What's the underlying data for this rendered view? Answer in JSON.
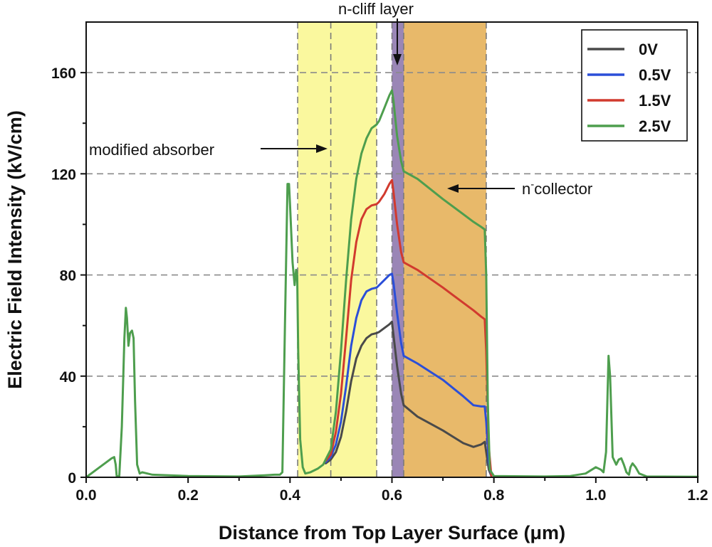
{
  "chart_data": {
    "type": "line",
    "xlabel": "Distance from Top Layer Surface (μm)",
    "ylabel": "Electric Field Intensity (kV/cm)",
    "xlim": [
      0,
      1.2
    ],
    "ylim": [
      0,
      180
    ],
    "xticks": [
      0.0,
      0.2,
      0.4,
      0.6,
      0.8,
      1.0,
      1.2
    ],
    "xtick_labels": [
      "0.0",
      "0.2",
      "0.4",
      "0.6",
      "0.8",
      "1.0",
      "1.2"
    ],
    "yticks": [
      0,
      40,
      80,
      120,
      160
    ],
    "ytick_labels": [
      "0",
      "40",
      "80",
      "120",
      "160"
    ],
    "grid": "horizontal dashed at 40, 80, 120, 160",
    "legend_position": "top-right",
    "regions": [
      {
        "name": "modified absorber",
        "x0": 0.415,
        "x1": 0.57,
        "color": "#faf89e"
      },
      {
        "name": "n-cliff layer",
        "x0": 0.6,
        "x1": 0.623,
        "color": "#9a86b6"
      },
      {
        "name": "n-collector",
        "x0": 0.623,
        "x1": 0.785,
        "color": "#e8b96a"
      }
    ],
    "vlines": [
      0.415,
      0.48,
      0.57,
      0.6,
      0.623,
      0.785
    ],
    "annotations": {
      "modified_absorber": "modified absorber",
      "n_cliff": "n-cliff layer",
      "collector_main": "n",
      "collector_sup": "-",
      "collector_tail": "collector"
    },
    "series": [
      {
        "name": "0V",
        "color": "#4a4a4a",
        "points": [
          [
            0.47,
            5.5
          ],
          [
            0.48,
            7
          ],
          [
            0.49,
            10
          ],
          [
            0.5,
            16
          ],
          [
            0.51,
            26
          ],
          [
            0.52,
            38
          ],
          [
            0.53,
            47
          ],
          [
            0.54,
            52
          ],
          [
            0.55,
            55
          ],
          [
            0.56,
            56.5
          ],
          [
            0.57,
            57
          ],
          [
            0.575,
            57.5
          ],
          [
            0.585,
            59
          ],
          [
            0.595,
            60.5
          ],
          [
            0.6,
            61.5
          ],
          [
            0.602,
            58
          ],
          [
            0.61,
            44
          ],
          [
            0.618,
            33
          ],
          [
            0.623,
            28.5
          ],
          [
            0.65,
            24
          ],
          [
            0.7,
            18.5
          ],
          [
            0.74,
            13.5
          ],
          [
            0.76,
            12
          ],
          [
            0.775,
            13
          ],
          [
            0.782,
            14
          ],
          [
            0.785,
            10
          ],
          [
            0.79,
            3
          ],
          [
            0.795,
            0.5
          ]
        ]
      },
      {
        "name": "0.5V",
        "color": "#2b4fd8",
        "points": [
          [
            0.47,
            6
          ],
          [
            0.48,
            8
          ],
          [
            0.49,
            13
          ],
          [
            0.5,
            22
          ],
          [
            0.51,
            36
          ],
          [
            0.52,
            52
          ],
          [
            0.53,
            63
          ],
          [
            0.54,
            70
          ],
          [
            0.55,
            73.5
          ],
          [
            0.56,
            74.5
          ],
          [
            0.57,
            75
          ],
          [
            0.575,
            76
          ],
          [
            0.585,
            78
          ],
          [
            0.595,
            80
          ],
          [
            0.6,
            80.5
          ],
          [
            0.603,
            77
          ],
          [
            0.61,
            65
          ],
          [
            0.618,
            53
          ],
          [
            0.623,
            48
          ],
          [
            0.65,
            45
          ],
          [
            0.7,
            38.5
          ],
          [
            0.74,
            32
          ],
          [
            0.76,
            28.5
          ],
          [
            0.775,
            28
          ],
          [
            0.782,
            28
          ],
          [
            0.785,
            22
          ],
          [
            0.79,
            6
          ],
          [
            0.795,
            0.5
          ]
        ]
      },
      {
        "name": "1.5V",
        "color": "#d13a2e",
        "points": [
          [
            0.47,
            6.5
          ],
          [
            0.48,
            9
          ],
          [
            0.49,
            18
          ],
          [
            0.5,
            33
          ],
          [
            0.51,
            55
          ],
          [
            0.52,
            78
          ],
          [
            0.53,
            93
          ],
          [
            0.54,
            102
          ],
          [
            0.55,
            106
          ],
          [
            0.56,
            107.5
          ],
          [
            0.57,
            108
          ],
          [
            0.575,
            109
          ],
          [
            0.585,
            112
          ],
          [
            0.595,
            116
          ],
          [
            0.6,
            117.5
          ],
          [
            0.603,
            113
          ],
          [
            0.61,
            100
          ],
          [
            0.618,
            89
          ],
          [
            0.623,
            85
          ],
          [
            0.65,
            82
          ],
          [
            0.7,
            75
          ],
          [
            0.74,
            69
          ],
          [
            0.76,
            66
          ],
          [
            0.775,
            63.5
          ],
          [
            0.782,
            62.5
          ],
          [
            0.785,
            50
          ],
          [
            0.79,
            12
          ],
          [
            0.795,
            0.5
          ]
        ]
      },
      {
        "name": "2.5V",
        "color": "#4e9e4e",
        "points": [
          [
            0,
            0
          ],
          [
            0.02,
            3
          ],
          [
            0.04,
            6
          ],
          [
            0.05,
            7.5
          ],
          [
            0.055,
            8
          ],
          [
            0.058,
            5
          ],
          [
            0.06,
            0.5
          ],
          [
            0.065,
            0.3
          ],
          [
            0.07,
            20
          ],
          [
            0.075,
            55
          ],
          [
            0.078,
            67
          ],
          [
            0.08,
            63
          ],
          [
            0.083,
            52
          ],
          [
            0.086,
            57
          ],
          [
            0.09,
            58
          ],
          [
            0.093,
            55
          ],
          [
            0.096,
            30
          ],
          [
            0.1,
            5
          ],
          [
            0.105,
            1.5
          ],
          [
            0.11,
            2
          ],
          [
            0.13,
            1
          ],
          [
            0.2,
            0.5
          ],
          [
            0.3,
            0.3
          ],
          [
            0.35,
            0.8
          ],
          [
            0.37,
            1
          ],
          [
            0.38,
            1
          ],
          [
            0.385,
            2
          ],
          [
            0.39,
            60
          ],
          [
            0.395,
            116
          ],
          [
            0.398,
            116
          ],
          [
            0.4,
            108
          ],
          [
            0.405,
            85
          ],
          [
            0.409,
            76
          ],
          [
            0.412,
            82
          ],
          [
            0.414,
            80
          ],
          [
            0.416,
            50
          ],
          [
            0.42,
            15
          ],
          [
            0.425,
            4
          ],
          [
            0.43,
            1.5
          ],
          [
            0.44,
            2
          ],
          [
            0.455,
            3.5
          ],
          [
            0.465,
            5
          ],
          [
            0.47,
            7
          ],
          [
            0.48,
            11
          ],
          [
            0.49,
            26
          ],
          [
            0.5,
            50
          ],
          [
            0.51,
            78
          ],
          [
            0.52,
            102
          ],
          [
            0.53,
            118
          ],
          [
            0.54,
            128
          ],
          [
            0.55,
            134
          ],
          [
            0.56,
            138
          ],
          [
            0.57,
            139.5
          ],
          [
            0.575,
            141
          ],
          [
            0.585,
            146
          ],
          [
            0.595,
            151
          ],
          [
            0.6,
            153
          ],
          [
            0.603,
            149
          ],
          [
            0.61,
            135
          ],
          [
            0.618,
            125
          ],
          [
            0.623,
            121
          ],
          [
            0.65,
            118
          ],
          [
            0.7,
            110
          ],
          [
            0.74,
            104
          ],
          [
            0.76,
            101
          ],
          [
            0.775,
            99
          ],
          [
            0.782,
            98
          ],
          [
            0.785,
            80
          ],
          [
            0.788,
            30
          ],
          [
            0.792,
            3
          ],
          [
            0.8,
            0.5
          ],
          [
            0.9,
            0.3
          ],
          [
            0.95,
            0.5
          ],
          [
            0.98,
            1.5
          ],
          [
            1.0,
            4
          ],
          [
            1.01,
            3
          ],
          [
            1.015,
            2
          ],
          [
            1.02,
            10
          ],
          [
            1.025,
            48
          ],
          [
            1.028,
            40
          ],
          [
            1.033,
            8
          ],
          [
            1.04,
            5
          ],
          [
            1.045,
            7
          ],
          [
            1.05,
            7.5
          ],
          [
            1.055,
            5
          ],
          [
            1.06,
            2
          ],
          [
            1.065,
            1
          ],
          [
            1.068,
            4
          ],
          [
            1.072,
            5.5
          ],
          [
            1.078,
            4
          ],
          [
            1.085,
            1.5
          ],
          [
            1.1,
            0.3
          ],
          [
            1.2,
            0.2
          ]
        ]
      }
    ]
  }
}
